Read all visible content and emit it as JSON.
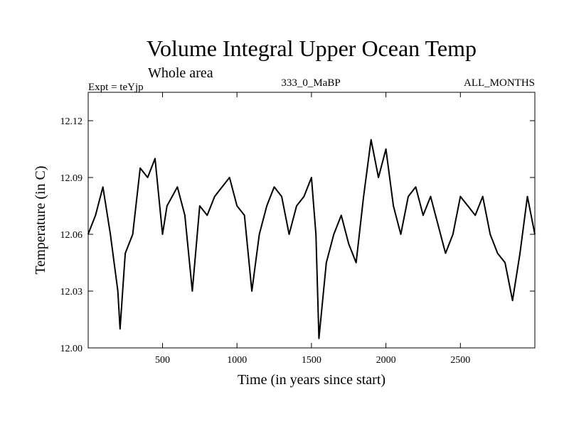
{
  "chart_data": {
    "type": "line",
    "title": "Volume Integral Upper Ocean Temp",
    "subtitle": "Whole area",
    "experiment": "Expt = teYjp",
    "period": "333_0_MaBP",
    "months": "ALL_MONTHS",
    "xlabel": "Time (in years since start)",
    "ylabel": "Temperature (in C)",
    "xlim": [
      1,
      3000
    ],
    "ylim": [
      12.0,
      12.135
    ],
    "xticks": [
      500,
      1000,
      1500,
      2000,
      2500
    ],
    "xtick_labels": [
      "500",
      "1000",
      "1500",
      "2000",
      "2500"
    ],
    "yticks": [
      12.0,
      12.03,
      12.06,
      12.09,
      12.12
    ],
    "ytick_labels": [
      "12.00",
      "12.03",
      "12.06",
      "12.09",
      "12.12"
    ],
    "grid": false,
    "series": [
      {
        "name": "Temperature",
        "color": "#000000",
        "x": [
          0,
          50,
          100,
          150,
          200,
          215,
          250,
          300,
          350,
          400,
          450,
          500,
          530,
          600,
          650,
          700,
          750,
          800,
          850,
          900,
          950,
          1000,
          1050,
          1100,
          1150,
          1200,
          1250,
          1300,
          1350,
          1400,
          1450,
          1500,
          1530,
          1550,
          1600,
          1650,
          1700,
          1750,
          1800,
          1850,
          1900,
          1950,
          2000,
          2050,
          2100,
          2150,
          2200,
          2250,
          2300,
          2350,
          2400,
          2450,
          2500,
          2550,
          2600,
          2650,
          2700,
          2750,
          2800,
          2850,
          2900,
          2950,
          3000
        ],
        "values": [
          12.06,
          12.07,
          12.085,
          12.06,
          12.03,
          12.01,
          12.05,
          12.06,
          12.095,
          12.09,
          12.1,
          12.06,
          12.075,
          12.085,
          12.07,
          12.03,
          12.075,
          12.07,
          12.08,
          12.085,
          12.09,
          12.075,
          12.07,
          12.03,
          12.06,
          12.075,
          12.085,
          12.08,
          12.06,
          12.075,
          12.08,
          12.09,
          12.06,
          12.005,
          12.045,
          12.06,
          12.07,
          12.055,
          12.045,
          12.08,
          12.11,
          12.09,
          12.105,
          12.075,
          12.06,
          12.08,
          12.085,
          12.07,
          12.08,
          12.065,
          12.05,
          12.06,
          12.08,
          12.075,
          12.07,
          12.08,
          12.06,
          12.05,
          12.045,
          12.025,
          12.05,
          12.08,
          12.06
        ]
      }
    ]
  }
}
